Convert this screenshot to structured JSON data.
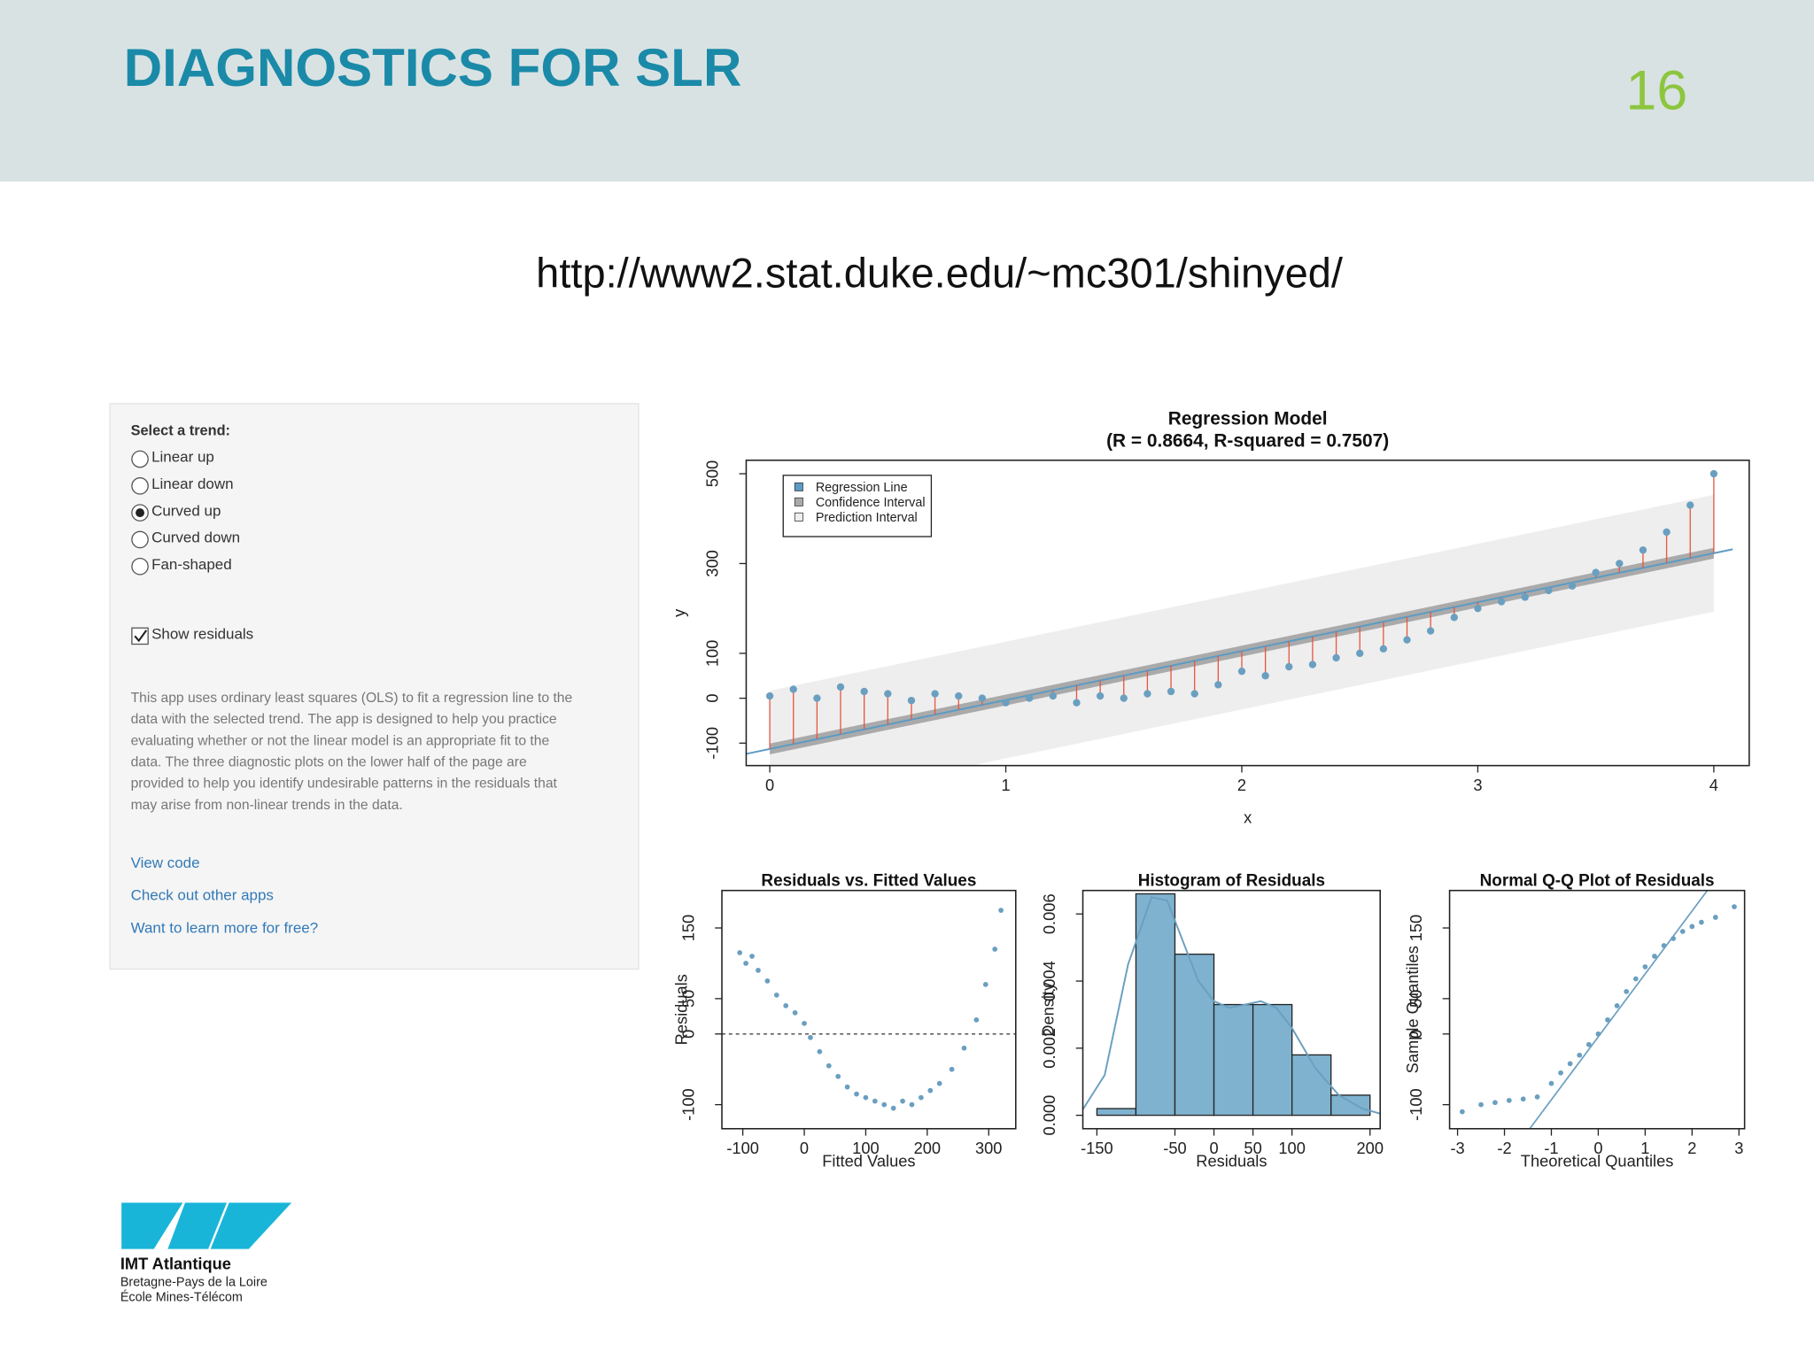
{
  "header": {
    "title": "DIAGNOSTICS FOR SLR",
    "page_number": "16"
  },
  "url": "http://www2.stat.duke.edu/~mc301/shinyed/",
  "sidebar": {
    "trend_label": "Select a trend:",
    "options": [
      {
        "label": "Linear up",
        "checked": false
      },
      {
        "label": "Linear down",
        "checked": false
      },
      {
        "label": "Curved up",
        "checked": true
      },
      {
        "label": "Curved down",
        "checked": false
      },
      {
        "label": "Fan-shaped",
        "checked": false
      }
    ],
    "checkbox": {
      "label": "Show residuals",
      "checked": true
    },
    "description": [
      "This app uses ordinary least squares (OLS) to fit a regression line to the",
      "data with the selected trend. The app is designed to help you practice",
      "evaluating whether or not the linear model is an appropriate fit to the",
      "data. The three diagnostic plots on the lower half of the page are",
      "provided to help you identify undesirable patterns in the residuals that",
      "may arise from non-linear trends in the data."
    ],
    "links": [
      "View code",
      "Check out other apps",
      "Want to learn more for free?"
    ]
  },
  "logo": {
    "name": "IMT Atlantique",
    "line1": "Bretagne-Pays de la Loire",
    "line2": "École Mines-Télécom"
  },
  "chart_data": [
    {
      "type": "scatter",
      "title": "Regression Model",
      "subtitle": "(R = 0.8664, R-squared = 0.7507)",
      "x_label": "x",
      "y_label": "y",
      "xlim": [
        -0.1,
        4.15
      ],
      "ylim": [
        -150,
        530
      ],
      "xticks": [
        0,
        1,
        2,
        3,
        4
      ],
      "yticks": [
        -100,
        0,
        100,
        300,
        500
      ],
      "color": "#6a9fc0",
      "residual_color": "#e8553f",
      "show_residuals": true,
      "fit": {
        "intercept": -113,
        "slope": 109,
        "confidence": 12,
        "prediction": 130
      },
      "legend": {
        "position": "top-left",
        "entries": [
          {
            "name": "Regression Line",
            "color": "#5b9bc4"
          },
          {
            "name": "Confidence Interval",
            "color": "#aaaaaa"
          },
          {
            "name": "Prediction Interval",
            "color": "#eeeeee"
          }
        ]
      },
      "x": [
        0,
        0.1,
        0.2,
        0.3,
        0.4,
        0.5,
        0.6,
        0.7,
        0.8,
        0.9,
        1,
        1.1,
        1.2,
        1.3,
        1.4,
        1.5,
        1.6,
        1.7,
        1.8,
        1.9,
        2,
        2.1,
        2.2,
        2.3,
        2.4,
        2.5,
        2.6,
        2.7,
        2.8,
        2.9,
        3,
        3.1,
        3.2,
        3.3,
        3.4,
        3.5,
        3.6,
        3.7,
        3.8,
        3.9,
        4
      ],
      "y": [
        5,
        20,
        0,
        25,
        15,
        10,
        -5,
        10,
        5,
        0,
        -10,
        0,
        5,
        -10,
        5,
        0,
        10,
        15,
        10,
        30,
        60,
        50,
        70,
        75,
        90,
        100,
        110,
        130,
        150,
        180,
        200,
        215,
        225,
        240,
        250,
        280,
        300,
        330,
        370,
        430,
        500
      ]
    },
    {
      "type": "scatter",
      "title": "Residuals vs. Fitted Values",
      "x_label": "Fitted Values",
      "y_label": "Residuals",
      "xlim": [
        -134,
        344
      ],
      "ylim": [
        -134,
        203
      ],
      "xticks": [
        -100,
        0,
        100,
        200,
        300
      ],
      "yticks": [
        -100,
        0,
        50,
        150
      ],
      "color": "#6a9fc0",
      "hline": 0,
      "x": [
        -105,
        -95,
        -85,
        -75,
        -60,
        -45,
        -30,
        -15,
        0,
        10,
        25,
        40,
        55,
        70,
        85,
        100,
        115,
        130,
        145,
        160,
        175,
        190,
        205,
        220,
        240,
        260,
        280,
        295,
        310,
        320
      ],
      "y": [
        115,
        100,
        110,
        90,
        75,
        55,
        40,
        30,
        15,
        -5,
        -25,
        -45,
        -60,
        -75,
        -85,
        -90,
        -95,
        -100,
        -105,
        -95,
        -100,
        -90,
        -80,
        -70,
        -50,
        -20,
        20,
        70,
        120,
        175
      ]
    },
    {
      "type": "histogram",
      "title": "Histogram of Residuals",
      "x_label": "Residuals",
      "y_label": "Density",
      "xlim": [
        -168,
        213
      ],
      "ylim": [
        -0.0004,
        0.0067
      ],
      "xticks": [
        -150,
        -50,
        0,
        50,
        100,
        200
      ],
      "yticks": [
        {
          "value": 0,
          "label": "0.000"
        },
        0.002,
        0.004,
        0.006
      ],
      "color": "#7fb2cf",
      "line_color": "#6a9fc0",
      "bins": [
        -150,
        -100,
        -50,
        0,
        50,
        100,
        150,
        200
      ],
      "values": [
        0.0002,
        0.0066,
        0.0048,
        0.0033,
        0.0033,
        0.0018,
        0.0006
      ],
      "density": {
        "x": [
          -170,
          -140,
          -110,
          -80,
          -60,
          -40,
          -20,
          0,
          20,
          40,
          60,
          80,
          100,
          130,
          160,
          190,
          213
        ],
        "y": [
          0.0001,
          0.0012,
          0.0045,
          0.0065,
          0.0064,
          0.0052,
          0.004,
          0.0034,
          0.0032,
          0.0033,
          0.0034,
          0.0032,
          0.0026,
          0.0014,
          0.0006,
          0.0002,
          5e-05
        ]
      }
    },
    {
      "type": "scatter",
      "title": "Normal Q-Q Plot of Residuals",
      "x_label": "Theoretical Quantiles",
      "y_label": "Sample Quantiles",
      "xlim": [
        -3.17,
        3.12
      ],
      "ylim": [
        -134,
        203
      ],
      "xticks": [
        -3,
        -2,
        -1,
        0,
        1,
        2,
        3
      ],
      "yticks": [
        -100,
        0,
        50,
        150
      ],
      "color": "#6a9fc0",
      "reference_line": {
        "intercept": -4,
        "slope": 89
      },
      "x": [
        -2.9,
        -2.5,
        -2.2,
        -1.9,
        -1.6,
        -1.3,
        -1,
        -0.8,
        -0.6,
        -0.4,
        -0.2,
        0,
        0.2,
        0.4,
        0.6,
        0.8,
        1,
        1.2,
        1.4,
        1.6,
        1.8,
        2,
        2.2,
        2.5,
        2.9
      ],
      "y": [
        -110,
        -100,
        -97,
        -94,
        -92,
        -89,
        -70,
        -55,
        -42,
        -30,
        -15,
        0,
        20,
        40,
        60,
        78,
        95,
        110,
        125,
        135,
        145,
        152,
        158,
        165,
        180
      ]
    }
  ]
}
